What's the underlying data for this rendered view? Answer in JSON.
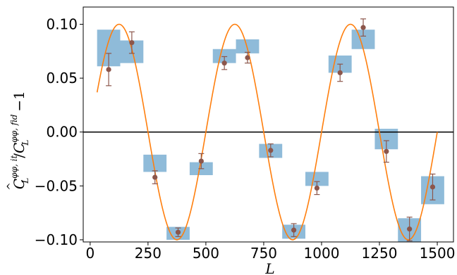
{
  "chart_data": {
    "type": "scatter",
    "xlabel": "L",
    "ylabel_parts": {
      "main": "C",
      "hat": "^",
      "sup_num": "φφ, it",
      "sub_num": "L",
      "slash": "/",
      "sup_den": "φφ, fid",
      "sub_den": "L",
      "suffix": "−1"
    },
    "xlim": [
      -30,
      1570
    ],
    "ylim": [
      -0.102,
      0.116
    ],
    "xticks": [
      0,
      250,
      500,
      750,
      1000,
      1250,
      1500
    ],
    "xtick_labels": [
      "0",
      "250",
      "500",
      "750",
      "1000",
      "1250",
      "1500"
    ],
    "yticks": [
      -0.1,
      -0.05,
      0.0,
      0.05,
      0.1
    ],
    "ytick_labels": [
      "−0.10",
      "−0.05",
      "0.00",
      "0.05",
      "0.10"
    ],
    "zero_line": true,
    "curve": {
      "amplitude": 0.1,
      "period": 500,
      "center": 125,
      "x_start": 30,
      "x_end": 1500,
      "color": "#ff7f0e"
    },
    "boxes": {
      "color": "#1f77b4",
      "opacity": 0.5,
      "items": [
        {
          "x0": 30,
          "x1": 130,
          "y0": 0.061,
          "y1": 0.095
        },
        {
          "x0": 130,
          "x1": 230,
          "y0": 0.064,
          "y1": 0.085
        },
        {
          "x0": 230,
          "x1": 330,
          "y0": -0.037,
          "y1": -0.021
        },
        {
          "x0": 330,
          "x1": 430,
          "y0": -0.1,
          "y1": -0.088
        },
        {
          "x0": 430,
          "x1": 530,
          "y0": -0.04,
          "y1": -0.028
        },
        {
          "x0": 530,
          "x1": 630,
          "y0": 0.064,
          "y1": 0.077
        },
        {
          "x0": 630,
          "x1": 730,
          "y0": 0.073,
          "y1": 0.086
        },
        {
          "x0": 730,
          "x1": 830,
          "y0": -0.024,
          "y1": -0.011
        },
        {
          "x0": 830,
          "x1": 930,
          "y0": -0.099,
          "y1": -0.086
        },
        {
          "x0": 930,
          "x1": 1030,
          "y0": -0.05,
          "y1": -0.037
        },
        {
          "x0": 1030,
          "x1": 1130,
          "y0": 0.055,
          "y1": 0.071
        },
        {
          "x0": 1130,
          "x1": 1230,
          "y0": 0.077,
          "y1": 0.095
        },
        {
          "x0": 1230,
          "x1": 1330,
          "y0": -0.016,
          "y1": 0.003
        },
        {
          "x0": 1330,
          "x1": 1430,
          "y0": -0.102,
          "y1": -0.08
        },
        {
          "x0": 1430,
          "x1": 1530,
          "y0": -0.067,
          "y1": -0.041
        }
      ]
    },
    "points": {
      "color": "#8c564b",
      "items": [
        {
          "x": 80,
          "y": 0.058,
          "err": 0.015
        },
        {
          "x": 180,
          "y": 0.083,
          "err": 0.01
        },
        {
          "x": 280,
          "y": -0.042,
          "err": 0.006
        },
        {
          "x": 380,
          "y": -0.093,
          "err": 0.004
        },
        {
          "x": 480,
          "y": -0.027,
          "err": 0.007
        },
        {
          "x": 580,
          "y": 0.064,
          "err": 0.006
        },
        {
          "x": 680,
          "y": 0.069,
          "err": 0.005
        },
        {
          "x": 780,
          "y": -0.017,
          "err": 0.006
        },
        {
          "x": 880,
          "y": -0.091,
          "err": 0.006
        },
        {
          "x": 980,
          "y": -0.052,
          "err": 0.006
        },
        {
          "x": 1080,
          "y": 0.055,
          "err": 0.008
        },
        {
          "x": 1180,
          "y": 0.097,
          "err": 0.008
        },
        {
          "x": 1280,
          "y": -0.018,
          "err": 0.01
        },
        {
          "x": 1380,
          "y": -0.09,
          "err": 0.011
        },
        {
          "x": 1480,
          "y": -0.051,
          "err": 0.012
        }
      ]
    }
  }
}
